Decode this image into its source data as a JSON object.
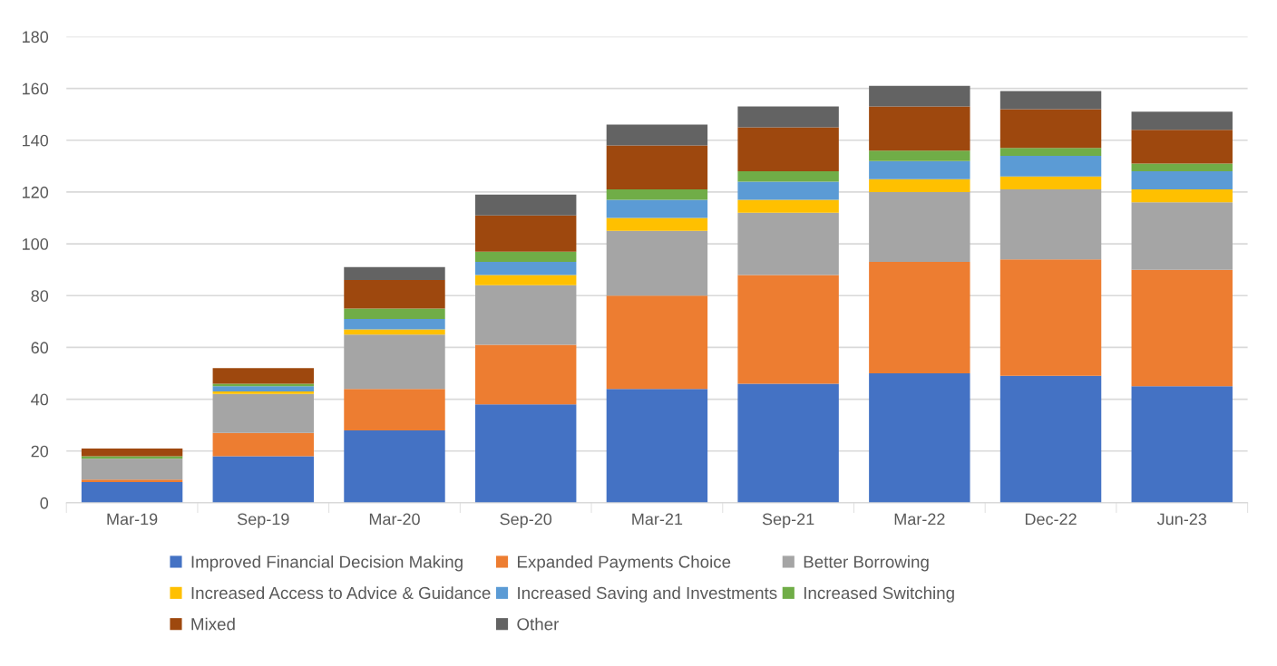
{
  "chart_data": {
    "type": "bar",
    "stacked": true,
    "categories": [
      "Mar-19",
      "Sep-19",
      "Mar-20",
      "Sep-20",
      "Mar-21",
      "Sep-21",
      "Mar-22",
      "Dec-22",
      "Jun-23"
    ],
    "series": [
      {
        "name": "Improved Financial Decision Making",
        "color": "#4472c4",
        "values": [
          8,
          18,
          28,
          38,
          44,
          46,
          50,
          49,
          45
        ]
      },
      {
        "name": "Expanded Payments Choice",
        "color": "#ed7d31",
        "values": [
          1,
          9,
          16,
          23,
          36,
          42,
          43,
          45,
          45
        ]
      },
      {
        "name": "Better Borrowing",
        "color": "#a5a5a5",
        "values": [
          8,
          15,
          21,
          23,
          25,
          24,
          27,
          27,
          26
        ]
      },
      {
        "name": "Increased Access to Advice & Guidance",
        "color": "#ffc000",
        "values": [
          0,
          1,
          2,
          4,
          5,
          5,
          5,
          5,
          5
        ]
      },
      {
        "name": "Increased Saving and Investments",
        "color": "#5b9bd5",
        "values": [
          0,
          2,
          4,
          5,
          7,
          7,
          7,
          8,
          7
        ]
      },
      {
        "name": "Increased Switching",
        "color": "#70ad47",
        "values": [
          1,
          1,
          4,
          4,
          4,
          4,
          4,
          3,
          3
        ]
      },
      {
        "name": "Mixed",
        "color": "#9e480e",
        "values": [
          3,
          6,
          11,
          14,
          17,
          17,
          17,
          15,
          13
        ]
      },
      {
        "name": "Other",
        "color": "#636363",
        "values": [
          0,
          0,
          5,
          8,
          8,
          8,
          8,
          7,
          7
        ]
      }
    ],
    "ylim": [
      0,
      180
    ],
    "yticks": [
      0,
      20,
      40,
      60,
      80,
      100,
      120,
      140,
      160,
      180
    ],
    "grid": "y",
    "legend": "bottom"
  }
}
